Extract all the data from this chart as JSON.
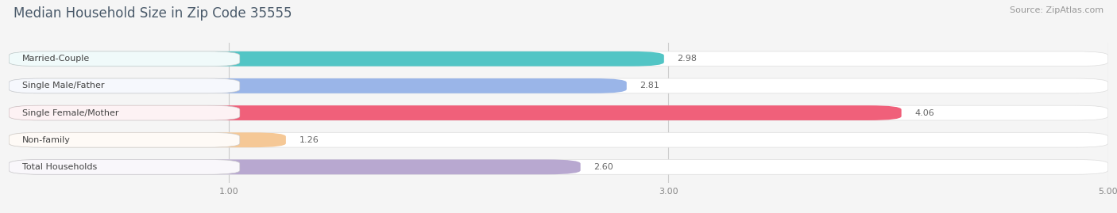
{
  "title": "Median Household Size in Zip Code 35555",
  "source": "Source: ZipAtlas.com",
  "categories": [
    "Married-Couple",
    "Single Male/Father",
    "Single Female/Mother",
    "Non-family",
    "Total Households"
  ],
  "values": [
    2.98,
    2.81,
    4.06,
    1.26,
    2.6
  ],
  "bar_colors": [
    "#52c5c5",
    "#9ab5e8",
    "#f0607a",
    "#f5c896",
    "#b8a8d0"
  ],
  "xlim": [
    0,
    5.0
  ],
  "xticks": [
    1.0,
    3.0,
    5.0
  ],
  "background_color": "#f5f5f5",
  "bar_bg_color": "#ffffff",
  "title_color": "#4a5a6a",
  "title_fontsize": 12,
  "label_fontsize": 8,
  "value_fontsize": 8,
  "source_fontsize": 8
}
